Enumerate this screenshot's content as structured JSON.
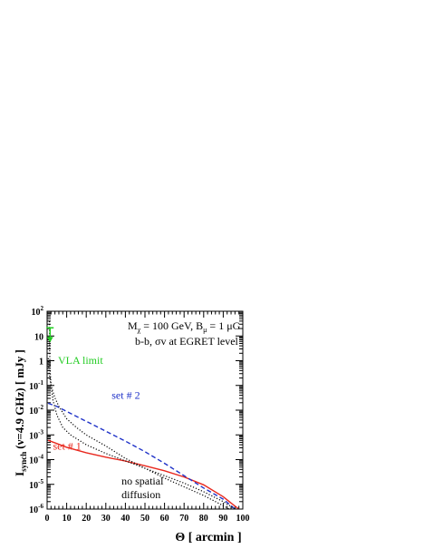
{
  "chart_data": {
    "type": "line",
    "xlabel": "Θ [ arcmin ]",
    "ylabel_main": "I",
    "ylabel_sub": "synch",
    "ylabel_rest": "(ν=4.9 GHz) [ mJy ]",
    "xlim": [
      0,
      100
    ],
    "ylim_log10": [
      -6,
      2
    ],
    "y_log_scale": true,
    "x_ticks": [
      0,
      10,
      20,
      30,
      40,
      50,
      60,
      70,
      80,
      90,
      100
    ],
    "y_ticks": [
      {
        "base": "10",
        "exp": "2",
        "value": 2
      },
      {
        "base": "10",
        "exp": "",
        "value": 1
      },
      {
        "base": "1",
        "exp": "",
        "value": 0
      },
      {
        "base": "10",
        "exp": "-1",
        "value": -1
      },
      {
        "base": "10",
        "exp": "-2",
        "value": -2
      },
      {
        "base": "10",
        "exp": "-3",
        "value": -3
      },
      {
        "base": "10",
        "exp": "-4",
        "value": -4
      },
      {
        "base": "10",
        "exp": "-5",
        "value": -5
      },
      {
        "base": "10",
        "exp": "-6",
        "value": -6
      }
    ],
    "annotations": {
      "line1_a": "M",
      "line1_a_sub": "χ",
      "line1_b": " = 100 GeV,  B",
      "line1_b_sub": "μ",
      "line1_c": " = 1 μG",
      "line2": "b-b,  σv at EGRET level"
    },
    "vla_limit": {
      "label": "VLA limit",
      "x": 1.5,
      "y": 1.0,
      "color": "#22cc22"
    },
    "series": [
      {
        "name": "set # 1",
        "color": "#e8281e",
        "dash": "solid",
        "label_at": [
          3,
          -3.6
        ],
        "points": [
          [
            0.5,
            -3.22
          ],
          [
            5,
            -3.35
          ],
          [
            10,
            -3.5
          ],
          [
            20,
            -3.72
          ],
          [
            30,
            -3.9
          ],
          [
            40,
            -4.06
          ],
          [
            50,
            -4.25
          ],
          [
            60,
            -4.45
          ],
          [
            70,
            -4.7
          ],
          [
            80,
            -5.02
          ],
          [
            90,
            -5.5
          ],
          [
            95,
            -5.82
          ],
          [
            98,
            -6.0
          ]
        ]
      },
      {
        "name": "set # 2",
        "color": "#1f32c8",
        "dash": "dashed",
        "label_at": [
          33,
          -1.55
        ],
        "points": [
          [
            0.5,
            -1.72
          ],
          [
            5,
            -1.85
          ],
          [
            10,
            -2.05
          ],
          [
            20,
            -2.45
          ],
          [
            30,
            -2.85
          ],
          [
            40,
            -3.25
          ],
          [
            50,
            -3.68
          ],
          [
            60,
            -4.15
          ],
          [
            70,
            -4.65
          ],
          [
            80,
            -5.15
          ],
          [
            90,
            -5.6
          ],
          [
            96,
            -6.0
          ]
        ]
      },
      {
        "name": "no spatial diffusion",
        "name_lines": [
          "no spatial",
          "diffusion"
        ],
        "color": "#000000",
        "dash": "dotted",
        "label_at": [
          38,
          -5.0
        ],
        "points": [
          [
            0.6,
            0.1
          ],
          [
            1,
            -0.5
          ],
          [
            2,
            -1.0
          ],
          [
            4,
            -1.5
          ],
          [
            6,
            -1.85
          ],
          [
            8,
            -2.1
          ],
          [
            10,
            -2.35
          ],
          [
            15,
            -2.7
          ],
          [
            20,
            -3.0
          ],
          [
            30,
            -3.45
          ],
          [
            40,
            -3.95
          ],
          [
            50,
            -4.35
          ],
          [
            60,
            -4.75
          ],
          [
            70,
            -5.1
          ],
          [
            80,
            -5.45
          ],
          [
            88,
            -5.78
          ],
          [
            93,
            -6.0
          ]
        ]
      },
      {
        "name": "",
        "color": "#000000",
        "dash": "dotted",
        "points": [
          [
            1.2,
            1.6
          ],
          [
            1.3,
            0.5
          ],
          [
            1.5,
            -0.3
          ],
          [
            2,
            -1.0
          ],
          [
            3,
            -1.6
          ],
          [
            5,
            -2.2
          ],
          [
            8,
            -2.7
          ],
          [
            12,
            -3.0
          ],
          [
            20,
            -3.4
          ],
          [
            30,
            -3.75
          ],
          [
            40,
            -4.05
          ],
          [
            50,
            -4.35
          ],
          [
            60,
            -4.65
          ],
          [
            70,
            -4.95
          ],
          [
            80,
            -5.3
          ],
          [
            90,
            -5.7
          ],
          [
            96,
            -6.0
          ]
        ]
      }
    ]
  }
}
